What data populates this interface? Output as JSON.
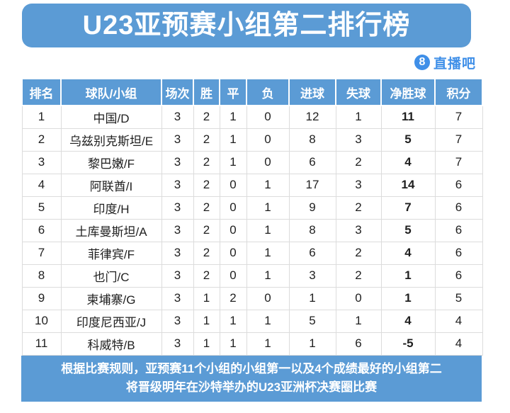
{
  "title": "U23亚预赛小组第二排行榜",
  "logo": {
    "badge": "8",
    "text": "直播吧"
  },
  "colors": {
    "primary_blue": "#5b9bd5",
    "logo_blue": "#3f8fe8",
    "grid_line": "#dcdcdc"
  },
  "table": {
    "headers": [
      "排名",
      "球队/小组",
      "场次",
      "胜",
      "平",
      "负",
      "进球",
      "失球",
      "净胜球",
      "积分"
    ],
    "rows": [
      [
        "1",
        "中国/D",
        "3",
        "2",
        "1",
        "0",
        "12",
        "1",
        "11",
        "7"
      ],
      [
        "2",
        "乌兹别克斯坦/E",
        "3",
        "2",
        "1",
        "0",
        "8",
        "3",
        "5",
        "7"
      ],
      [
        "3",
        "黎巴嫩/F",
        "3",
        "2",
        "1",
        "0",
        "6",
        "2",
        "4",
        "7"
      ],
      [
        "4",
        "阿联酋/I",
        "3",
        "2",
        "0",
        "1",
        "17",
        "3",
        "14",
        "6"
      ],
      [
        "5",
        "印度/H",
        "3",
        "2",
        "0",
        "1",
        "9",
        "2",
        "7",
        "6"
      ],
      [
        "6",
        "土库曼斯坦/A",
        "3",
        "2",
        "0",
        "1",
        "8",
        "3",
        "5",
        "6"
      ],
      [
        "7",
        "菲律宾/F",
        "3",
        "2",
        "0",
        "1",
        "6",
        "2",
        "4",
        "6"
      ],
      [
        "8",
        "也门/C",
        "3",
        "2",
        "0",
        "1",
        "3",
        "2",
        "1",
        "6"
      ],
      [
        "9",
        "柬埔寨/G",
        "3",
        "1",
        "2",
        "0",
        "1",
        "0",
        "1",
        "5"
      ],
      [
        "10",
        "印度尼西亚/J",
        "3",
        "1",
        "1",
        "1",
        "5",
        "1",
        "4",
        "4"
      ],
      [
        "11",
        "科威特/B",
        "3",
        "1",
        "1",
        "1",
        "1",
        "6",
        "-5",
        "4"
      ]
    ]
  },
  "footer": {
    "line1": "根据比赛规则，亚预赛11个小组的小组第一以及4个成绩最好的小组第二",
    "line2": "将晋级明年在沙特举办的U23亚洲杯决赛圈比赛"
  }
}
